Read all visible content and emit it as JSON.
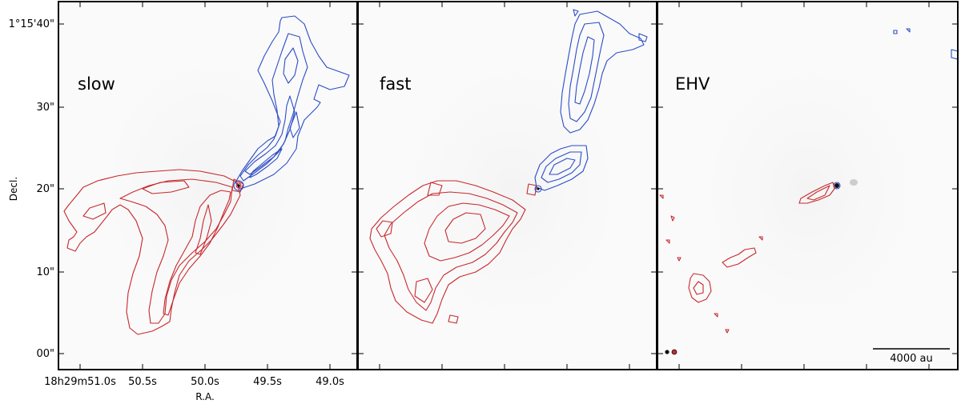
{
  "chart_data": {
    "type": "contour",
    "xlabel": "R.A.",
    "ylabel": "Decl.",
    "x_ticks": [
      "18h29m51.0s",
      "50.5s",
      "50.0s",
      "49.5s",
      "49.0s"
    ],
    "y_ticks": [
      "00\"",
      "10\"",
      "20\"",
      "30\"",
      "1°15'40\""
    ],
    "panels": [
      {
        "label": "slow"
      },
      {
        "label": "fast"
      },
      {
        "label": "EHV",
        "scalebar": "4000 au"
      }
    ],
    "series": [
      {
        "color": "#2b4cc8"
      },
      {
        "color": "#c8282d"
      }
    ]
  }
}
